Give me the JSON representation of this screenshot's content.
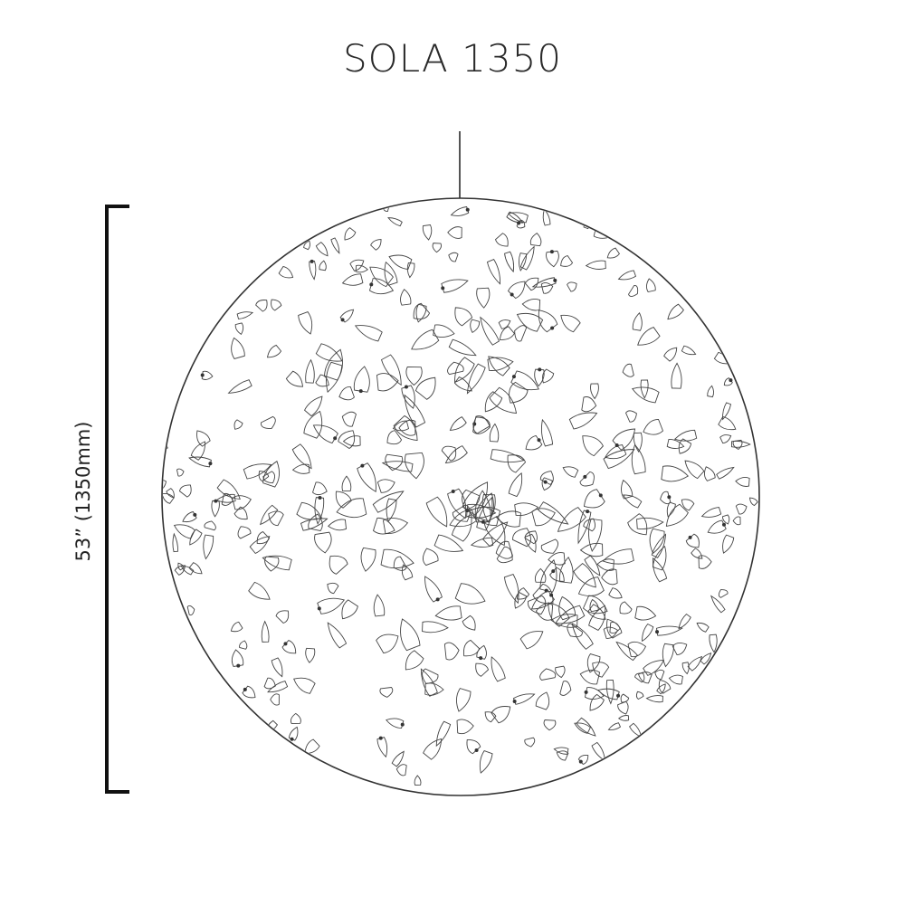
{
  "title": "SOLA 1350",
  "dimension_label": "53” (1350mm)",
  "colors": {
    "line": "#222222",
    "cord": "#555555",
    "pattern": "#444444"
  }
}
